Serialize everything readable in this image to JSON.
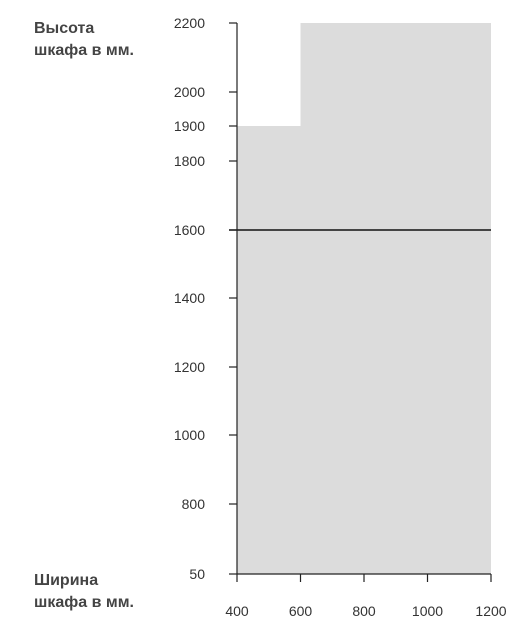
{
  "chart_data": {
    "type": "area",
    "title": "",
    "ylabel": "Высота\nшкафа в мм.",
    "xlabel": "Ширина\nшкафа в мм.",
    "x_ticks": [
      400,
      600,
      800,
      1000,
      1200
    ],
    "y_ticks": [
      50,
      800,
      1000,
      1200,
      1400,
      1600,
      1800,
      1900,
      2000,
      2200
    ],
    "xlim": [
      400,
      1200
    ],
    "grid": false,
    "region": {
      "description_points": [
        [
          400,
          1900
        ],
        [
          600,
          1900
        ],
        [
          600,
          2200
        ],
        [
          1200,
          2200
        ]
      ],
      "baseline": 50
    },
    "reference_line": {
      "y": 1600,
      "x_range": [
        400,
        1200
      ]
    },
    "colors": {
      "fill": "#dcdcdc",
      "axis": "#222222",
      "line": "#111111"
    }
  }
}
